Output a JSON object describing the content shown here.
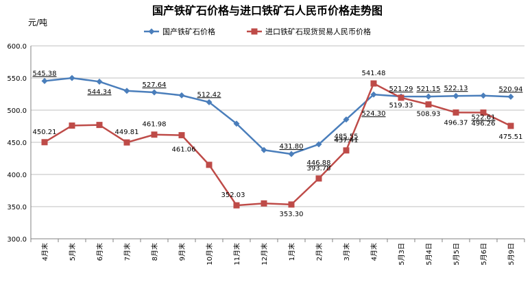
{
  "chart_data": {
    "type": "line",
    "title": "国产铁矿石价格与进口铁矿石人民币价格走势图",
    "ylabel": "元/吨",
    "xlabel": "",
    "ylim": [
      300,
      600
    ],
    "yticks": [
      "300.0",
      "350.0",
      "400.0",
      "450.0",
      "500.0",
      "550.0",
      "600.0"
    ],
    "grid": "horizontal",
    "legend_position": "top",
    "categories": [
      "4月末",
      "5月末",
      "6月末",
      "7月末",
      "8月末",
      "9月末",
      "10月末",
      "11月末",
      "12月末",
      "1月末",
      "2月末",
      "3月末",
      "4月末",
      "5月3日",
      "5月4日",
      "5月5日",
      "5月6日",
      "5月9日"
    ],
    "series": [
      {
        "name": "国产铁矿石价格",
        "color": "#4a7ebb",
        "marker": "diamond",
        "values": [
          545.38,
          550,
          544.34,
          530,
          527.64,
          523,
          512.42,
          479,
          438,
          431.8,
          446.88,
          485.55,
          524.3,
          521.29,
          521.15,
          522.13,
          522.61,
          520.94
        ],
        "labels": [
          "545.38",
          "",
          "544.34",
          "",
          "527.64",
          "",
          "512.42",
          "",
          "",
          "431.80",
          "446.88",
          "485.55",
          "524.30",
          "521.29",
          "521.15",
          "522.13",
          "522.61",
          "520.94"
        ]
      },
      {
        "name": "进口铁矿石现货贸易人民币价格",
        "color": "#be4b48",
        "marker": "square",
        "values": [
          450.21,
          476,
          477,
          449.81,
          461.98,
          461.06,
          415,
          352.03,
          355,
          353.3,
          393.78,
          437.41,
          541.48,
          519.33,
          508.93,
          496.37,
          496.26,
          475.51
        ],
        "labels": [
          "450.21",
          "",
          "",
          "449.81",
          "461.98",
          "461.06",
          "",
          "352.03",
          "",
          "353.30",
          "393.78",
          "437.41",
          "541.48",
          "519.33",
          "508.93",
          "496.37",
          "496.26",
          "475.51"
        ]
      }
    ]
  }
}
